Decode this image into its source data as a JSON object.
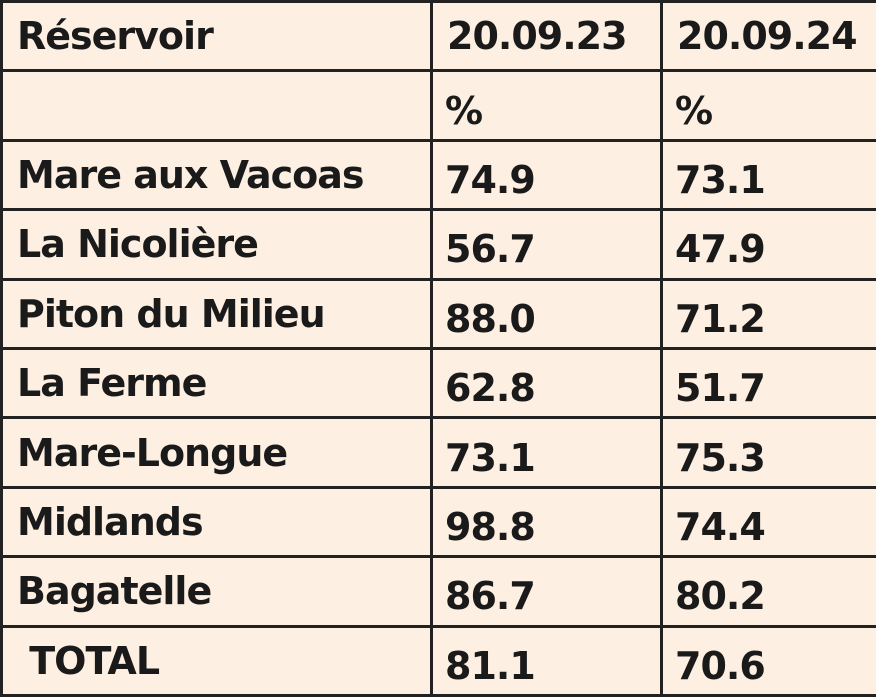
{
  "table": {
    "header": [
      "Réservoir",
      "20.09.23",
      "20.09.24"
    ],
    "units": [
      "%",
      "%"
    ],
    "rows": [
      [
        "Mare aux Vacoas",
        "74.9",
        "73.1"
      ],
      [
        "La Nicolière",
        "56.7",
        "47.9"
      ],
      [
        "Piton du Milieu",
        "88.0",
        "71.2"
      ],
      [
        "La Ferme",
        "62.8",
        "51.7"
      ],
      [
        "Mare-Longue",
        "73.1",
        "75.3"
      ],
      [
        "Midlands",
        "98.8",
        "74.4"
      ],
      [
        "Bagatelle",
        "86.7",
        "80.2"
      ],
      [
        " TOTAL",
        "81.1",
        "70.6"
      ]
    ]
  }
}
